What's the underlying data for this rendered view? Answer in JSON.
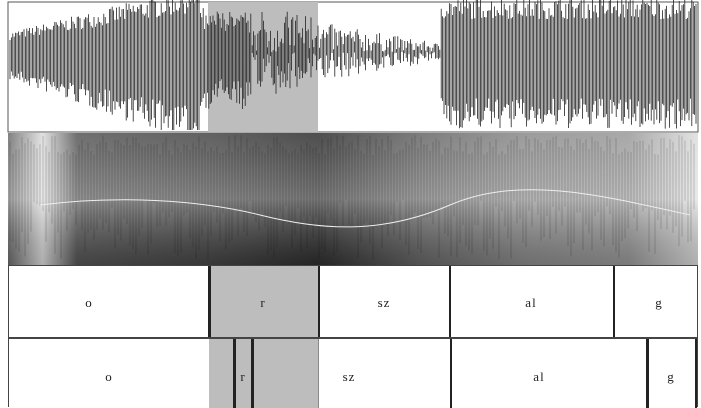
{
  "tiers": [
    {
      "segments": [
        "o",
        "r",
        "sz",
        "al",
        "g"
      ]
    },
    {
      "segments": [
        "o",
        "r",
        "sz",
        "al",
        "g"
      ]
    }
  ]
}
